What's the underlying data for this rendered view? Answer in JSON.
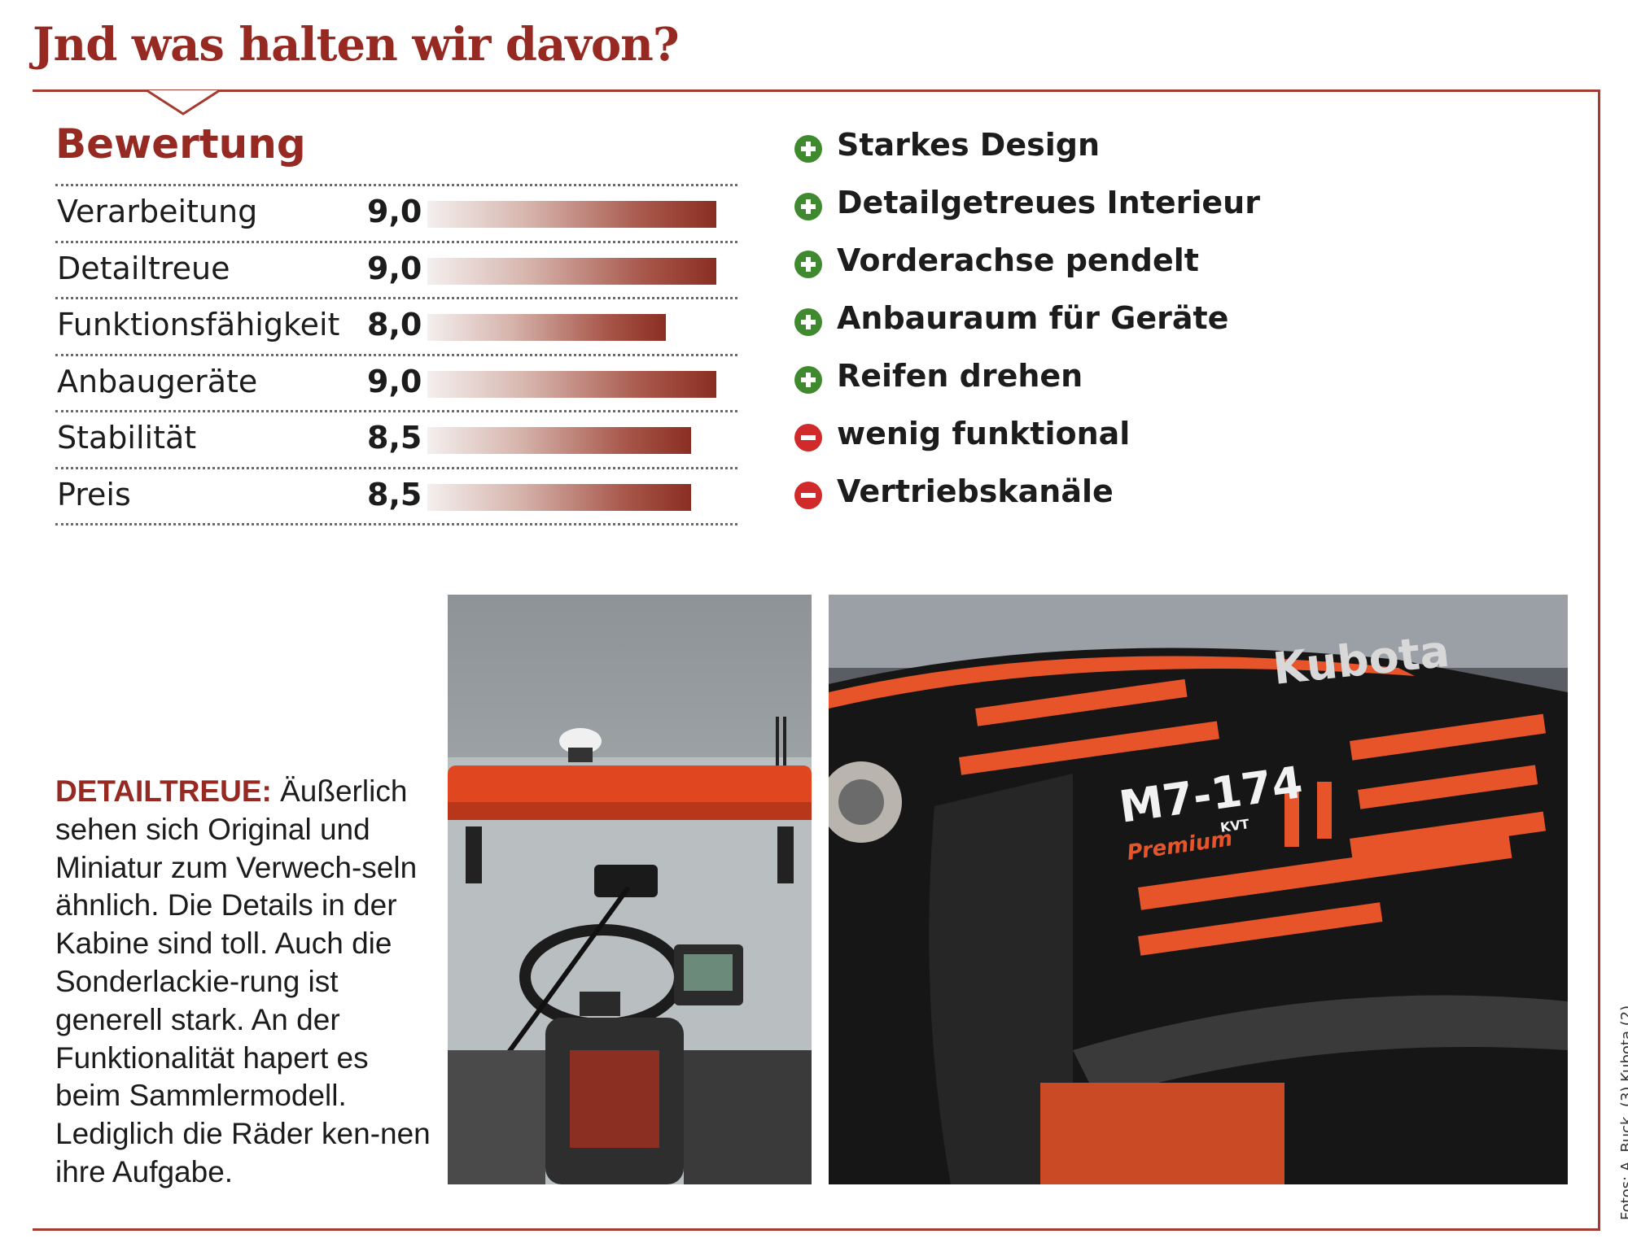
{
  "headline": "Jnd was halten wir davon?",
  "rating": {
    "title": "Bewertung",
    "max": 10,
    "items": [
      {
        "label": "Verarbeitung",
        "value": "9,0",
        "score": 9.0
      },
      {
        "label": "Detailtreue",
        "value": "9,0",
        "score": 9.0
      },
      {
        "label": "Funktionsfähigkeit",
        "value": "8,0",
        "score": 8.0
      },
      {
        "label": "Anbaugeräte",
        "value": "9,0",
        "score": 9.0
      },
      {
        "label": "Stabilität",
        "value": "8,5",
        "score": 8.5
      },
      {
        "label": "Preis",
        "value": "8,5",
        "score": 8.5
      }
    ]
  },
  "pros_cons": [
    {
      "type": "plus",
      "icon": "plus-circle-icon",
      "text": "Starkes Design"
    },
    {
      "type": "plus",
      "icon": "plus-circle-icon",
      "text": "Detailgetreues Interieur"
    },
    {
      "type": "plus",
      "icon": "plus-circle-icon",
      "text": "Vorderachse pendelt"
    },
    {
      "type": "plus",
      "icon": "plus-circle-icon",
      "text": "Anbauraum für Geräte"
    },
    {
      "type": "plus",
      "icon": "plus-circle-icon",
      "text": "Reifen drehen"
    },
    {
      "type": "minus",
      "icon": "minus-circle-icon",
      "text": "wenig funktional"
    },
    {
      "type": "minus",
      "icon": "minus-circle-icon",
      "text": "Vertriebskanäle"
    }
  ],
  "caption": {
    "lead": "DETAILTREUE:",
    "body": "Äußerlich sehen sich Original und Miniatur zum Verwech-seln ähnlich. Die Details in der Kabine sind toll. Auch die Sonderlackie-rung ist generell stark. An der Funktionalität hapert es beim Sammlermodell. Lediglich die Räder ken-nen ihre Aufgabe."
  },
  "photos": {
    "hood_brand": "Kubota",
    "hood_model": "M7-174",
    "hood_badge": "Premium",
    "hood_kvt": "KVT"
  },
  "credit": "Fotos: A. Buck, (3) Kubota (2)",
  "colors": {
    "accent": "#962a22",
    "frame": "#a53a30",
    "plus": "#3f8a2e",
    "minus": "#d02a2a",
    "kubota_orange": "#e8542a"
  }
}
